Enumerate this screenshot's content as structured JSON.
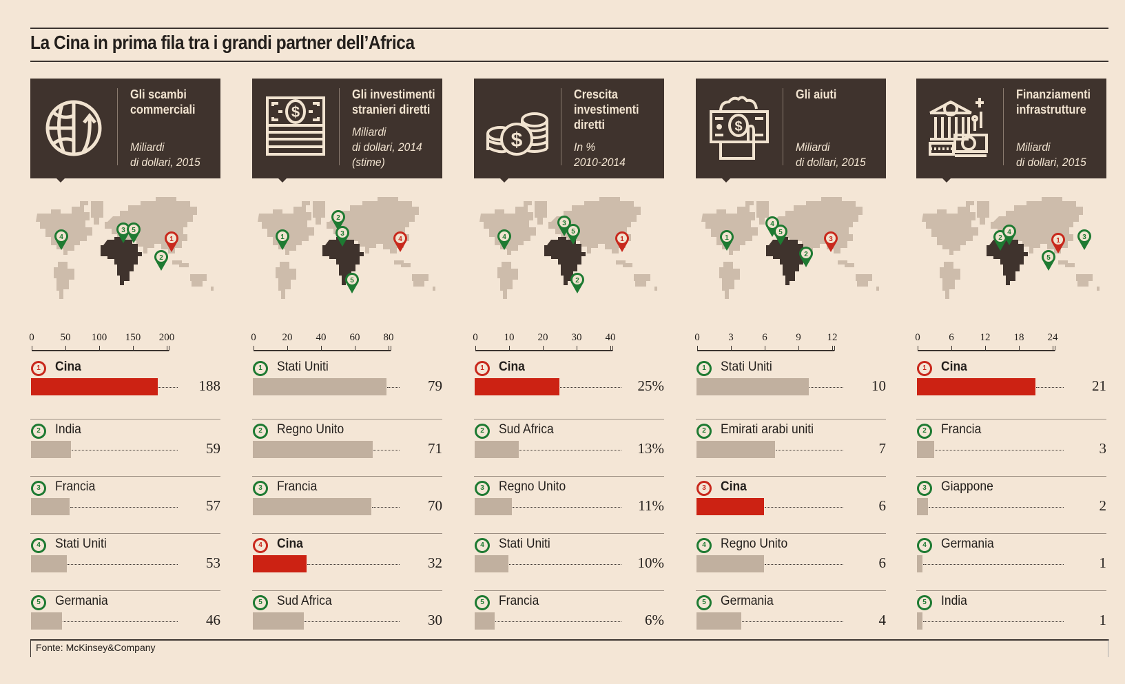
{
  "title": "La Cina in prima fila tra i grandi partner dell’Africa",
  "source": "Fonte: McKinsey&Company",
  "colors": {
    "background": "#f4e6d6",
    "header": "#3f332d",
    "china": "#cc2213",
    "other": "#c1b09f",
    "pin_green": "#1e7a32",
    "pin_red": "#c8281c",
    "map_land": "#cdbcab",
    "africa": "#3f332d"
  },
  "panels": [
    {
      "title": "Gli scambi\ncommerciali",
      "subtitle": "Miliardi\ndi dollari, 2015",
      "icon": "globe-trade-icon"
    },
    {
      "title": "Gli investimenti\nstranieri diretti",
      "subtitle": "Miliardi\ndi dollari, 2014\n(stime)",
      "icon": "banknote-icon"
    },
    {
      "title": "Crescita\ninvestimenti\ndiretti",
      "subtitle": "In %\n2010-2014",
      "icon": "coins-icon"
    },
    {
      "title": "Gli aiuti",
      "subtitle": "Miliardi\ndi dollari, 2015",
      "icon": "hand-money-icon"
    },
    {
      "title": "Finanziamenti\ninfrastrutture",
      "subtitle": "Miliardi\ndi dollari, 2015",
      "icon": "bank-building-icon"
    }
  ],
  "chart_data": [
    {
      "type": "bar",
      "title": "Gli scambi commerciali",
      "xlim": [
        0,
        200
      ],
      "ticks": [
        "0",
        "50",
        "100",
        "150",
        "200"
      ],
      "tick_values": [
        0,
        50,
        100,
        150,
        200
      ],
      "categories": [
        "Cina",
        "India",
        "Francia",
        "Stati Uniti",
        "Germania"
      ],
      "ranks": [
        "1",
        "2",
        "3",
        "4",
        "5"
      ],
      "values": [
        188,
        59,
        57,
        53,
        46
      ],
      "labels": [
        "188",
        "59",
        "57",
        "53",
        "46"
      ],
      "highlight": [
        true,
        false,
        false,
        false,
        false
      ],
      "pins": [
        {
          "rank": "1",
          "place": "Cina"
        },
        {
          "rank": "2",
          "place": "India"
        },
        {
          "rank": "3",
          "place": "Francia"
        },
        {
          "rank": "4",
          "place": "Stati Uniti"
        },
        {
          "rank": "5",
          "place": "Germania"
        }
      ]
    },
    {
      "type": "bar",
      "title": "Gli investimenti stranieri diretti",
      "xlim": [
        0,
        80
      ],
      "ticks": [
        "0",
        "20",
        "40",
        "60",
        "80"
      ],
      "tick_values": [
        0,
        20,
        40,
        60,
        80
      ],
      "categories": [
        "Stati Uniti",
        "Regno Unito",
        "Francia",
        "Cina",
        "Sud Africa"
      ],
      "ranks": [
        "1",
        "2",
        "3",
        "4",
        "5"
      ],
      "values": [
        79,
        71,
        70,
        32,
        30
      ],
      "labels": [
        "79",
        "71",
        "70",
        "32",
        "30"
      ],
      "highlight": [
        false,
        false,
        false,
        true,
        false
      ],
      "pins": [
        {
          "rank": "1",
          "place": "Stati Uniti"
        },
        {
          "rank": "2",
          "place": "Regno Unito"
        },
        {
          "rank": "3",
          "place": "Francia"
        },
        {
          "rank": "4",
          "place": "Cina"
        },
        {
          "rank": "5",
          "place": "Sud Africa"
        }
      ]
    },
    {
      "type": "bar",
      "title": "Crescita investimenti diretti",
      "xlim": [
        0,
        40
      ],
      "ticks": [
        "0",
        "10",
        "20",
        "30",
        "40"
      ],
      "tick_values": [
        0,
        10,
        20,
        30,
        40
      ],
      "categories": [
        "Cina",
        "Sud Africa",
        "Regno Unito",
        "Stati Uniti",
        "Francia"
      ],
      "ranks": [
        "1",
        "2",
        "3",
        "4",
        "5"
      ],
      "values": [
        25,
        13,
        11,
        10,
        6
      ],
      "labels": [
        "25%",
        "13%",
        "11%",
        "10%",
        "6%"
      ],
      "highlight": [
        true,
        false,
        false,
        false,
        false
      ],
      "pins": [
        {
          "rank": "1",
          "place": "Cina"
        },
        {
          "rank": "2",
          "place": "Sud Africa"
        },
        {
          "rank": "3",
          "place": "Regno Unito"
        },
        {
          "rank": "4",
          "place": "Stati Uniti"
        },
        {
          "rank": "5",
          "place": "Francia"
        }
      ]
    },
    {
      "type": "bar",
      "title": "Gli aiuti",
      "xlim": [
        0,
        12
      ],
      "ticks": [
        "0",
        "3",
        "6",
        "9",
        "12"
      ],
      "tick_values": [
        0,
        3,
        6,
        9,
        12
      ],
      "categories": [
        "Stati Uniti",
        "Emirati arabi uniti",
        "Cina",
        "Regno Unito",
        "Germania"
      ],
      "ranks": [
        "1",
        "2",
        "3",
        "4",
        "5"
      ],
      "values": [
        10,
        7,
        6,
        6,
        4
      ],
      "labels": [
        "10",
        "7",
        "6",
        "6",
        "4"
      ],
      "highlight": [
        false,
        false,
        true,
        false,
        false
      ],
      "pins": [
        {
          "rank": "1",
          "place": "Stati Uniti"
        },
        {
          "rank": "2",
          "place": "Emirati arabi uniti"
        },
        {
          "rank": "3",
          "place": "Cina"
        },
        {
          "rank": "4",
          "place": "Regno Unito"
        },
        {
          "rank": "5",
          "place": "Germania"
        }
      ]
    },
    {
      "type": "bar",
      "title": "Finanziamenti infrastrutture",
      "xlim": [
        0,
        24
      ],
      "ticks": [
        "0",
        "6",
        "12",
        "18",
        "24"
      ],
      "tick_values": [
        0,
        6,
        12,
        18,
        24
      ],
      "categories": [
        "Cina",
        "Francia",
        "Giappone",
        "Germania",
        "India"
      ],
      "ranks": [
        "1",
        "2",
        "3",
        "4",
        "5"
      ],
      "values": [
        21,
        3,
        2,
        1,
        1
      ],
      "labels": [
        "21",
        "3",
        "2",
        "1",
        "1"
      ],
      "highlight": [
        true,
        false,
        false,
        false,
        false
      ],
      "pins": [
        {
          "rank": "1",
          "place": "Cina"
        },
        {
          "rank": "2",
          "place": "Francia"
        },
        {
          "rank": "3",
          "place": "Giappone"
        },
        {
          "rank": "4",
          "place": "Germania"
        },
        {
          "rank": "5",
          "place": "India"
        }
      ]
    }
  ]
}
